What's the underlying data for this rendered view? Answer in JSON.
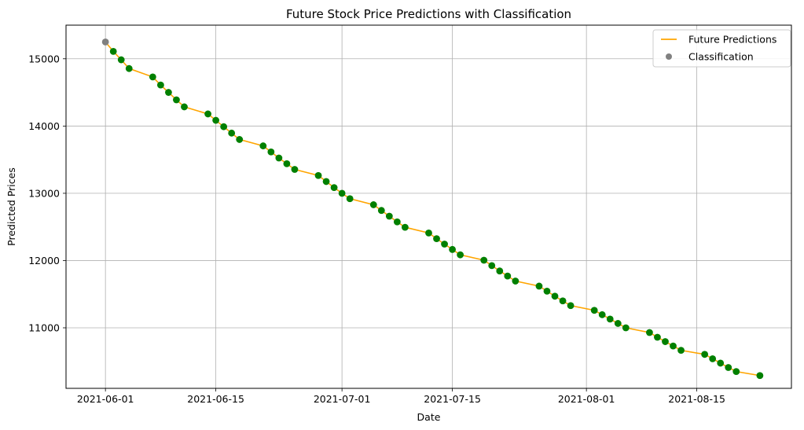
{
  "chart_data": {
    "type": "line",
    "title": "Future Stock Price Predictions with Classification",
    "xlabel": "Date",
    "ylabel": "Predicted Prices",
    "x_tick_labels": [
      "2021-06-01",
      "2021-06-15",
      "2021-07-01",
      "2021-07-15",
      "2021-08-01",
      "2021-08-15"
    ],
    "y_tick_labels": [
      "11000",
      "12000",
      "13000",
      "14000",
      "15000"
    ],
    "xlim": [
      "2021-05-27",
      "2021-08-27"
    ],
    "ylim": [
      10100,
      15500
    ],
    "grid": true,
    "legend_position": "top-right",
    "colors": {
      "line": "#ffa500",
      "classification_up": "#808080",
      "classification_down": "#008000",
      "grid": "#b0b0b0",
      "axes": "#000000"
    },
    "x": [
      "2021-06-01",
      "2021-06-02",
      "2021-06-03",
      "2021-06-04",
      "2021-06-07",
      "2021-06-08",
      "2021-06-09",
      "2021-06-10",
      "2021-06-11",
      "2021-06-14",
      "2021-06-15",
      "2021-06-16",
      "2021-06-17",
      "2021-06-18",
      "2021-06-21",
      "2021-06-22",
      "2021-06-23",
      "2021-06-24",
      "2021-06-25",
      "2021-06-28",
      "2021-06-29",
      "2021-06-30",
      "2021-07-01",
      "2021-07-02",
      "2021-07-05",
      "2021-07-06",
      "2021-07-07",
      "2021-07-08",
      "2021-07-09",
      "2021-07-12",
      "2021-07-13",
      "2021-07-14",
      "2021-07-15",
      "2021-07-16",
      "2021-07-19",
      "2021-07-20",
      "2021-07-21",
      "2021-07-22",
      "2021-07-23",
      "2021-07-26",
      "2021-07-27",
      "2021-07-28",
      "2021-07-29",
      "2021-07-30",
      "2021-08-02",
      "2021-08-03",
      "2021-08-04",
      "2021-08-05",
      "2021-08-06",
      "2021-08-09",
      "2021-08-10",
      "2021-08-11",
      "2021-08-12",
      "2021-08-13",
      "2021-08-16",
      "2021-08-17",
      "2021-08-18",
      "2021-08-19",
      "2021-08-20",
      "2021-08-23"
    ],
    "series": [
      {
        "name": "Future Predictions",
        "values": [
          15250,
          15110,
          14985,
          14855,
          14730,
          14610,
          14500,
          14390,
          14285,
          14180,
          14085,
          13990,
          13895,
          13800,
          13705,
          13615,
          13525,
          13440,
          13355,
          13265,
          13175,
          13085,
          13000,
          12920,
          12830,
          12745,
          12660,
          12575,
          12495,
          12410,
          12325,
          12245,
          12165,
          12085,
          12005,
          11925,
          11845,
          11770,
          11695,
          11620,
          11545,
          11470,
          11400,
          11330,
          11260,
          11195,
          11130,
          11065,
          11000,
          10930,
          10860,
          10795,
          10730,
          10665,
          10605,
          10540,
          10475,
          10410,
          10350,
          10290
        ]
      }
    ],
    "classification": {
      "name": "Classification",
      "labels": [
        "up",
        "down",
        "down",
        "down",
        "down",
        "down",
        "down",
        "down",
        "down",
        "down",
        "down",
        "down",
        "down",
        "down",
        "down",
        "down",
        "down",
        "down",
        "down",
        "down",
        "down",
        "down",
        "down",
        "down",
        "down",
        "down",
        "down",
        "down",
        "down",
        "down",
        "down",
        "down",
        "down",
        "down",
        "down",
        "down",
        "down",
        "down",
        "down",
        "down",
        "down",
        "down",
        "down",
        "down",
        "down",
        "down",
        "down",
        "down",
        "down",
        "down",
        "down",
        "down",
        "down",
        "down",
        "down",
        "down",
        "down",
        "down",
        "down",
        "down"
      ]
    }
  }
}
